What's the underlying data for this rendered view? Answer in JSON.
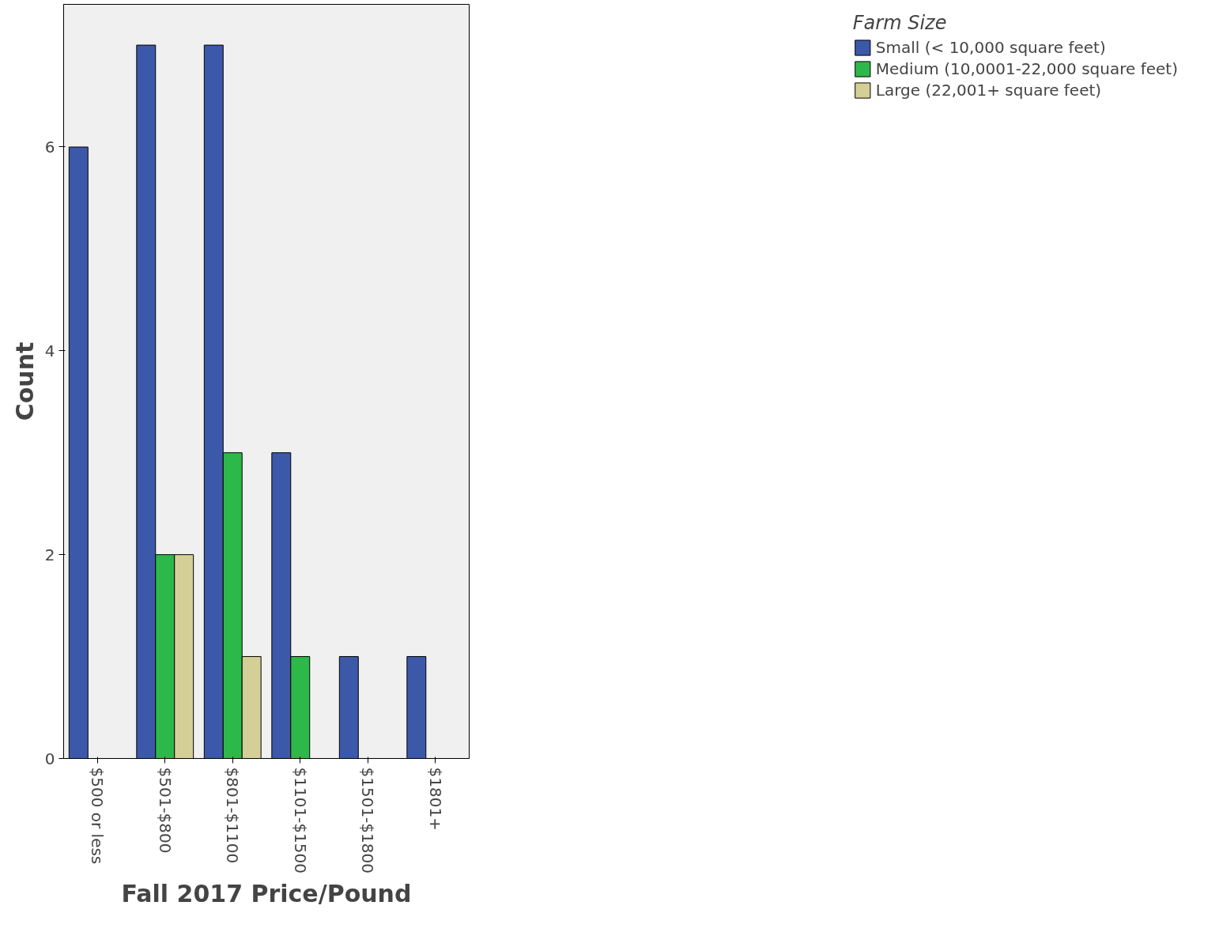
{
  "chart_data": {
    "type": "bar",
    "xlabel": "Fall 2017 Price/Pound",
    "ylabel": "Count",
    "legend_title": "Farm Size",
    "categories": [
      "$500 or less",
      "$501-$800",
      "$801-$1100",
      "$1101-$1500",
      "$1501-$1800",
      "$1801+"
    ],
    "series": [
      {
        "name": "Small (< 10,000 square feet)",
        "color": "#3c58a8",
        "values": [
          6,
          7,
          7,
          3,
          1,
          1
        ]
      },
      {
        "name": "Medium (10,0001-22,000 square feet)",
        "color": "#2db84a",
        "values": [
          0,
          2,
          3,
          1,
          0,
          0
        ]
      },
      {
        "name": "Large (22,001+ square feet)",
        "color": "#d4cf96",
        "values": [
          0,
          2,
          1,
          0,
          0,
          0
        ]
      }
    ],
    "ylim": [
      0,
      7.4
    ],
    "yticks": [
      0,
      2,
      4,
      6
    ],
    "grid": false,
    "legend": "right"
  }
}
